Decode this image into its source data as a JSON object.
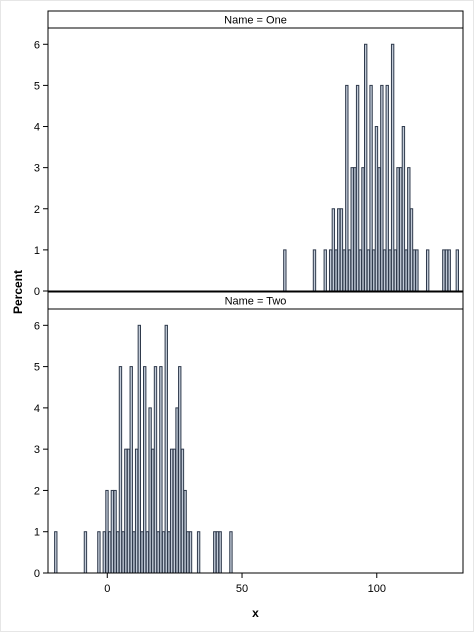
{
  "chart_data": {
    "type": "bar",
    "x_label": "x",
    "y_label": "Percent",
    "xlim": [
      -22,
      132
    ],
    "ylim": [
      0,
      6.25
    ],
    "x_ticks": [
      0,
      50,
      100
    ],
    "y_ticks": [
      0,
      1,
      2,
      3,
      4,
      5,
      6
    ],
    "bin_width": 1.1,
    "panels": [
      {
        "header": "Name = One",
        "bars": [
          {
            "x": 66,
            "y": 1
          },
          {
            "x": 77,
            "y": 1
          },
          {
            "x": 81,
            "y": 1
          },
          {
            "x": 83,
            "y": 1
          },
          {
            "x": 84,
            "y": 2
          },
          {
            "x": 85,
            "y": 1
          },
          {
            "x": 86,
            "y": 2
          },
          {
            "x": 87,
            "y": 2
          },
          {
            "x": 88,
            "y": 1
          },
          {
            "x": 89,
            "y": 5
          },
          {
            "x": 90,
            "y": 1
          },
          {
            "x": 91,
            "y": 3
          },
          {
            "x": 92,
            "y": 3
          },
          {
            "x": 93,
            "y": 5
          },
          {
            "x": 94,
            "y": 1
          },
          {
            "x": 95,
            "y": 3
          },
          {
            "x": 96,
            "y": 6
          },
          {
            "x": 97,
            "y": 1
          },
          {
            "x": 98,
            "y": 5
          },
          {
            "x": 99,
            "y": 1
          },
          {
            "x": 100,
            "y": 4
          },
          {
            "x": 101,
            "y": 3
          },
          {
            "x": 102,
            "y": 5
          },
          {
            "x": 103,
            "y": 1
          },
          {
            "x": 104,
            "y": 5
          },
          {
            "x": 105,
            "y": 1
          },
          {
            "x": 106,
            "y": 6
          },
          {
            "x": 107,
            "y": 1
          },
          {
            "x": 108,
            "y": 3
          },
          {
            "x": 109,
            "y": 3
          },
          {
            "x": 110,
            "y": 4
          },
          {
            "x": 111,
            "y": 1
          },
          {
            "x": 112,
            "y": 3
          },
          {
            "x": 113,
            "y": 2
          },
          {
            "x": 114,
            "y": 1
          },
          {
            "x": 115,
            "y": 1
          },
          {
            "x": 119,
            "y": 1
          },
          {
            "x": 125,
            "y": 1
          },
          {
            "x": 126,
            "y": 1
          },
          {
            "x": 127,
            "y": 1
          },
          {
            "x": 130,
            "y": 1
          }
        ]
      },
      {
        "header": "Name = Two",
        "bars": [
          {
            "x": -19,
            "y": 1
          },
          {
            "x": -8,
            "y": 1
          },
          {
            "x": -3,
            "y": 1
          },
          {
            "x": -1,
            "y": 1
          },
          {
            "x": 0,
            "y": 2
          },
          {
            "x": 1,
            "y": 1
          },
          {
            "x": 2,
            "y": 2
          },
          {
            "x": 3,
            "y": 2
          },
          {
            "x": 4,
            "y": 1
          },
          {
            "x": 5,
            "y": 5
          },
          {
            "x": 6,
            "y": 1
          },
          {
            "x": 7,
            "y": 3
          },
          {
            "x": 8,
            "y": 3
          },
          {
            "x": 9,
            "y": 5
          },
          {
            "x": 10,
            "y": 1
          },
          {
            "x": 11,
            "y": 3
          },
          {
            "x": 12,
            "y": 6
          },
          {
            "x": 13,
            "y": 1
          },
          {
            "x": 14,
            "y": 5
          },
          {
            "x": 15,
            "y": 1
          },
          {
            "x": 16,
            "y": 4
          },
          {
            "x": 17,
            "y": 3
          },
          {
            "x": 18,
            "y": 5
          },
          {
            "x": 19,
            "y": 1
          },
          {
            "x": 20,
            "y": 5
          },
          {
            "x": 21,
            "y": 1
          },
          {
            "x": 22,
            "y": 6
          },
          {
            "x": 23,
            "y": 1
          },
          {
            "x": 24,
            "y": 3
          },
          {
            "x": 25,
            "y": 3
          },
          {
            "x": 26,
            "y": 4
          },
          {
            "x": 27,
            "y": 5
          },
          {
            "x": 28,
            "y": 3
          },
          {
            "x": 29,
            "y": 2
          },
          {
            "x": 30,
            "y": 1
          },
          {
            "x": 31,
            "y": 1
          },
          {
            "x": 34,
            "y": 1
          },
          {
            "x": 40,
            "y": 1
          },
          {
            "x": 41,
            "y": 1
          },
          {
            "x": 42,
            "y": 1
          },
          {
            "x": 46,
            "y": 1
          }
        ]
      }
    ]
  },
  "colors": {
    "bar_fill": "#c2cbd8",
    "bar_stroke": "#2f3a4c",
    "frame": "#000000",
    "header_fill": "#ffffff"
  }
}
